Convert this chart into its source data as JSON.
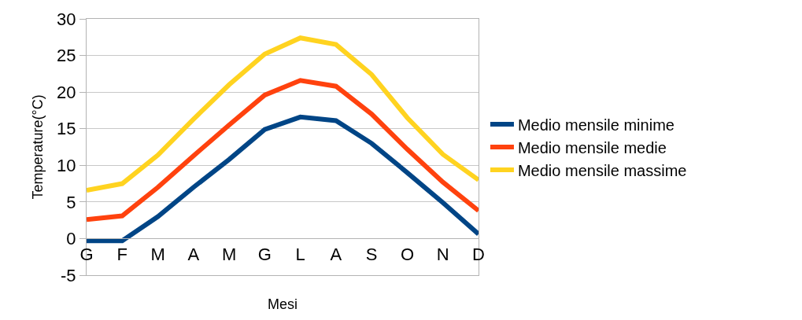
{
  "chart_data": {
    "type": "line",
    "xlabel": "Mesi",
    "ylabel": "Temperature(°C)",
    "categories": [
      "G",
      "F",
      "M",
      "A",
      "M",
      "G",
      "L",
      "A",
      "S",
      "O",
      "N",
      "D"
    ],
    "series": [
      {
        "name": "Medio mensile minime",
        "color": "#004586",
        "values": [
          -0.3,
          -0.3,
          3,
          7,
          10.8,
          14.9,
          16.6,
          16.1,
          13,
          9,
          4.9,
          0.6
        ]
      },
      {
        "name": "Medio mensile medie",
        "color": "#ff420e",
        "values": [
          2.6,
          3.1,
          7,
          11.3,
          15.5,
          19.6,
          21.6,
          20.8,
          17,
          12.2,
          7.7,
          3.8
        ]
      },
      {
        "name": "Medio mensile massime",
        "color": "#ffd320",
        "values": [
          6.6,
          7.5,
          11.4,
          16.3,
          21,
          25.2,
          27.4,
          26.5,
          22.4,
          16.5,
          11.5,
          8
        ]
      }
    ],
    "ylim": [
      -5,
      30
    ],
    "yticks": [
      -5,
      0,
      5,
      10,
      15,
      20,
      25,
      30
    ],
    "grid": "y",
    "legend": "right",
    "marker": "none",
    "line_style": "solid"
  }
}
